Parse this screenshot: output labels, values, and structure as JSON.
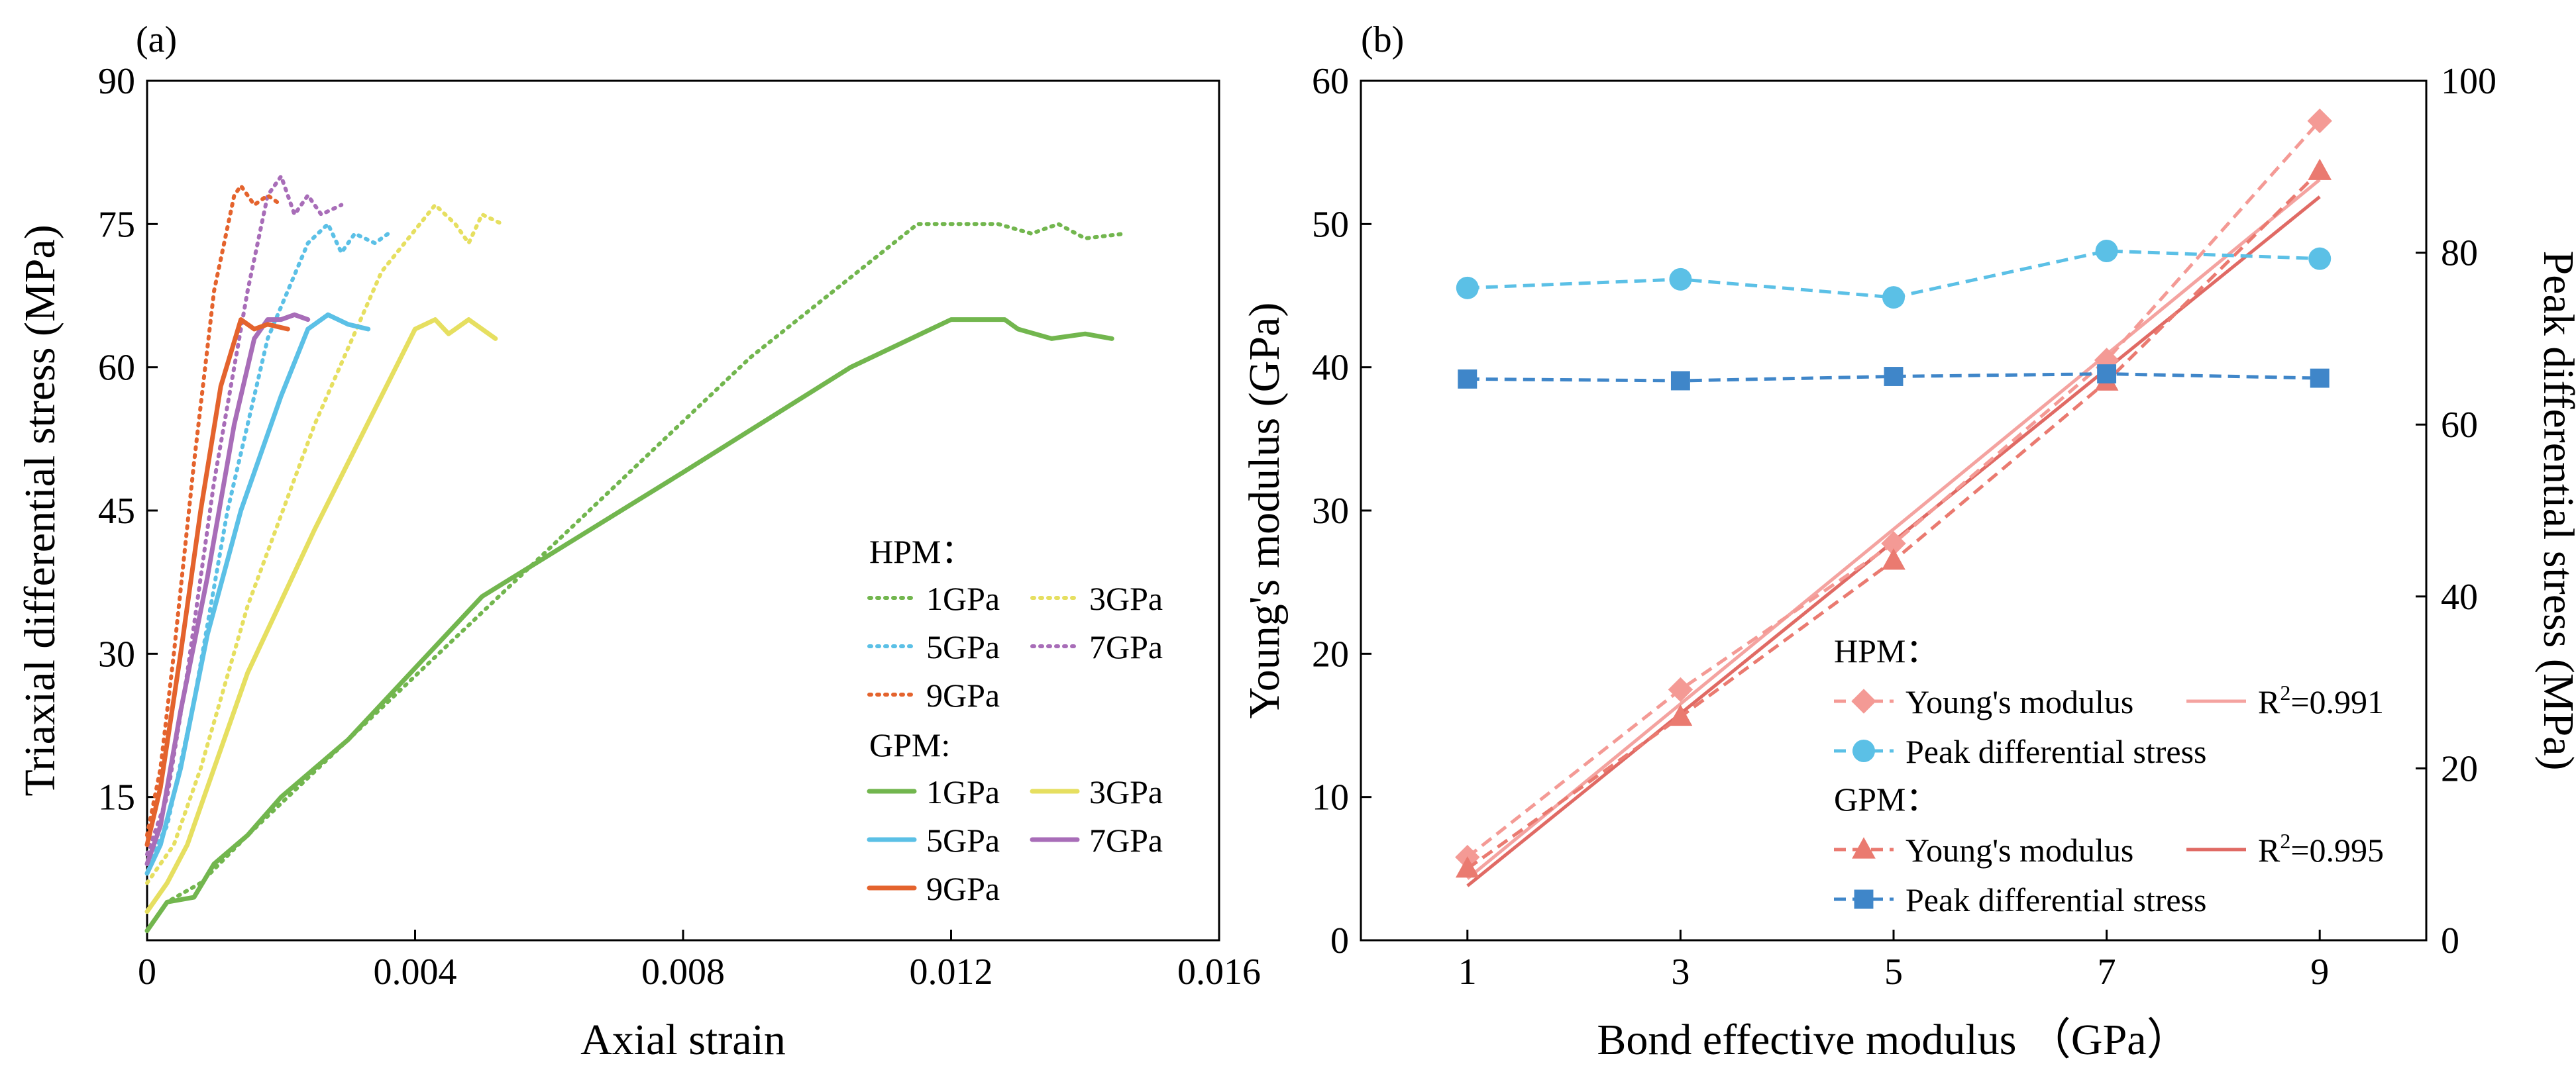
{
  "chart_data": [
    {
      "panel_label": "(a)",
      "type": "line",
      "xlabel": "Axial strain",
      "ylabel": "Triaxial differential stress (MPa)",
      "xlim": [
        0,
        0.016
      ],
      "ylim": [
        0,
        90
      ],
      "xticks": [
        0,
        0.004,
        0.008,
        0.012,
        0.016
      ],
      "xtick_labels": [
        "0",
        "0.004",
        "0.008",
        "0.012",
        "0.016"
      ],
      "yticks": [
        15,
        30,
        45,
        60,
        75,
        90
      ],
      "ytick_labels": [
        "15",
        "30",
        "45",
        "60",
        "75",
        "90"
      ],
      "legend": {
        "placement": "bottom-right",
        "groups": [
          {
            "title": "HPM：",
            "style": "dotted",
            "entries": [
              "1GPa",
              "3GPa",
              "5GPa",
              "7GPa",
              "9GPa"
            ]
          },
          {
            "title": "GPM:",
            "style": "solid",
            "entries": [
              "1GPa",
              "3GPa",
              "5GPa",
              "7GPa",
              "9GPa"
            ]
          }
        ]
      },
      "series": [
        {
          "name": "HPM 1GPa",
          "style": "dotted",
          "color": "#72b64e",
          "x": [
            0,
            0.0003,
            0.0008,
            0.0015,
            0.003,
            0.006,
            0.009,
            0.0115,
            0.0127,
            0.0132,
            0.0136,
            0.014,
            0.0146
          ],
          "y": [
            1,
            4,
            6,
            11,
            21,
            41,
            61,
            75,
            75,
            74,
            75,
            73.5,
            74
          ]
        },
        {
          "name": "HPM 3GPa",
          "style": "dotted",
          "color": "#e6df60",
          "x": [
            0,
            0.0004,
            0.0008,
            0.0015,
            0.0025,
            0.0035,
            0.0043,
            0.0046,
            0.0048,
            0.005,
            0.0053
          ],
          "y": [
            6,
            10,
            18,
            35,
            54,
            70,
            77,
            75,
            73,
            76,
            75
          ]
        },
        {
          "name": "HPM 5GPa",
          "style": "dotted",
          "color": "#5bc0e6",
          "x": [
            0,
            0.0003,
            0.0007,
            0.0012,
            0.0018,
            0.0024,
            0.0027,
            0.0029,
            0.0031,
            0.0034,
            0.0036
          ],
          "y": [
            8,
            12,
            25,
            45,
            63,
            73,
            75,
            72,
            74,
            73,
            74
          ]
        },
        {
          "name": "HPM 7GPa",
          "style": "dotted",
          "color": "#a86db8",
          "x": [
            0,
            0.0003,
            0.0006,
            0.001,
            0.0015,
            0.0018,
            0.002,
            0.0022,
            0.0024,
            0.0026,
            0.0029
          ],
          "y": [
            9,
            15,
            28,
            48,
            68,
            78,
            80,
            76,
            78,
            76,
            77
          ]
        },
        {
          "name": "HPM 9GPa",
          "style": "dotted",
          "color": "#e4632d",
          "x": [
            0,
            0.0002,
            0.0004,
            0.0007,
            0.001,
            0.0013,
            0.0014,
            0.0016,
            0.0018,
            0.002
          ],
          "y": [
            11,
            18,
            30,
            50,
            68,
            78,
            79,
            77,
            78,
            77
          ]
        },
        {
          "name": "GPM 1GPa",
          "style": "solid",
          "color": "#72b64e",
          "x": [
            0,
            0.0003,
            0.0007,
            0.001,
            0.0015,
            0.002,
            0.003,
            0.005,
            0.008,
            0.0105,
            0.012,
            0.0128,
            0.013,
            0.0135,
            0.014,
            0.0144
          ],
          "y": [
            1,
            4,
            4.5,
            8,
            11,
            15,
            21,
            36,
            49,
            60,
            65,
            65,
            64,
            63,
            63.5,
            63
          ]
        },
        {
          "name": "GPM 3GPa",
          "style": "solid",
          "color": "#e6df60",
          "x": [
            0,
            0.0003,
            0.0006,
            0.001,
            0.0015,
            0.0025,
            0.0035,
            0.004,
            0.0043,
            0.0045,
            0.0048,
            0.005,
            0.0052
          ],
          "y": [
            3,
            6,
            10,
            18,
            28,
            43,
            57,
            64,
            65,
            63.5,
            65,
            64,
            63
          ]
        },
        {
          "name": "GPM 5GPa",
          "style": "solid",
          "color": "#5bc0e6",
          "x": [
            0,
            0.0002,
            0.0005,
            0.0009,
            0.0014,
            0.002,
            0.0024,
            0.0027,
            0.003,
            0.0033
          ],
          "y": [
            7,
            10,
            18,
            32,
            45,
            57,
            64,
            65.5,
            64.5,
            64
          ]
        },
        {
          "name": "GPM 7GPa",
          "style": "solid",
          "color": "#a86db8",
          "x": [
            0,
            0.0002,
            0.0005,
            0.0009,
            0.0013,
            0.0016,
            0.0018,
            0.002,
            0.0022,
            0.0024
          ],
          "y": [
            8,
            12,
            24,
            38,
            54,
            63,
            65,
            65,
            65.5,
            65
          ]
        },
        {
          "name": "GPM 9GPa",
          "style": "solid",
          "color": "#e4632d",
          "x": [
            0,
            0.0002,
            0.0005,
            0.0008,
            0.0011,
            0.0014,
            0.0016,
            0.0018,
            0.0021
          ],
          "y": [
            10,
            16,
            30,
            45,
            58,
            65,
            64,
            64.5,
            64
          ]
        }
      ]
    },
    {
      "panel_label": "(b)",
      "type": "line",
      "xlabel": "Bond effective modulus （GPa）",
      "ylabel": "Young's modulus (GPa)",
      "y2label": "Peak differential stress (MPa)",
      "xlim": [
        0,
        10
      ],
      "ylim": [
        0,
        60
      ],
      "y2lim": [
        0,
        100
      ],
      "xticks": [
        1,
        3,
        5,
        7,
        9
      ],
      "xtick_labels": [
        "1",
        "3",
        "5",
        "7",
        "9"
      ],
      "yticks": [
        0,
        10,
        20,
        30,
        40,
        50,
        60
      ],
      "ytick_labels": [
        "0",
        "10",
        "20",
        "30",
        "40",
        "50",
        "60"
      ],
      "y2ticks": [
        0,
        20,
        40,
        60,
        80,
        100
      ],
      "y2tick_labels": [
        "0",
        "20",
        "40",
        "60",
        "80",
        "100"
      ],
      "legend": {
        "placement": "bottom-right",
        "groups": [
          {
            "title": "HPM：",
            "entries": [
              {
                "label": "Young's modulus",
                "marker": "diamond",
                "color": "#f49a95",
                "style": "dashed"
              },
              {
                "label": "R²=0.991",
                "color": "#f4a3a0",
                "style": "solid",
                "base": "R",
                "sup": "2",
                "rest": "=0.991"
              },
              {
                "label": "Peak differential stress",
                "marker": "circle",
                "color": "#5bc0e6",
                "style": "dashed"
              }
            ]
          },
          {
            "title": "GPM：",
            "entries": [
              {
                "label": "Young's modulus",
                "marker": "triangle",
                "color": "#ea7a70",
                "style": "dashed"
              },
              {
                "label": "R²=0.995",
                "color": "#e06a64",
                "style": "solid",
                "base": "R",
                "sup": "2",
                "rest": "=0.995"
              },
              {
                "label": "Peak differential stress",
                "marker": "square",
                "color": "#3f86c9",
                "style": "dashed"
              }
            ]
          }
        ]
      },
      "series": [
        {
          "name": "HPM Young's modulus",
          "axis": "left",
          "marker": "diamond",
          "style": "dashed",
          "color": "#f49a95",
          "x": [
            1,
            3,
            5,
            7,
            9
          ],
          "y": [
            5.8,
            17.5,
            27.7,
            40.5,
            57.2
          ]
        },
        {
          "name": "GPM Young's modulus",
          "axis": "left",
          "marker": "triangle",
          "style": "dashed",
          "color": "#ea7a70",
          "x": [
            1,
            3,
            5,
            7,
            9
          ],
          "y": [
            5.0,
            15.6,
            26.5,
            39.0,
            53.7
          ]
        },
        {
          "name": "HPM Peak differential stress",
          "axis": "right",
          "marker": "circle",
          "style": "dashed",
          "color": "#5bc0e6",
          "x": [
            1,
            3,
            5,
            7,
            9
          ],
          "y": [
            75.9,
            76.9,
            74.8,
            80.2,
            79.3
          ]
        },
        {
          "name": "GPM Peak differential stress",
          "axis": "right",
          "marker": "square",
          "style": "dashed",
          "color": "#3f86c9",
          "x": [
            1,
            3,
            5,
            7,
            9
          ],
          "y": [
            65.3,
            65.1,
            65.6,
            65.9,
            65.4
          ]
        },
        {
          "name": "HPM linear fit",
          "axis": "left",
          "style": "solid",
          "color": "#f4a3a0",
          "x": [
            1,
            9
          ],
          "y": [
            4.3,
            53.1
          ]
        },
        {
          "name": "GPM linear fit",
          "axis": "left",
          "style": "solid",
          "color": "#e06a64",
          "x": [
            1,
            9
          ],
          "y": [
            3.8,
            51.9
          ]
        }
      ]
    }
  ]
}
